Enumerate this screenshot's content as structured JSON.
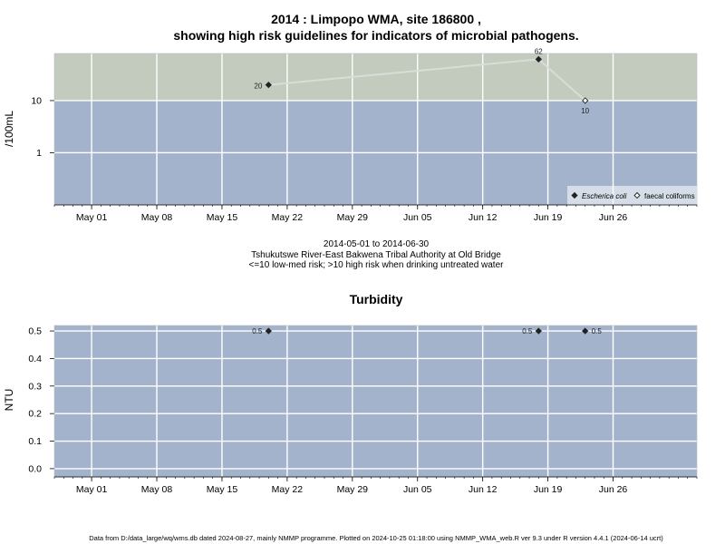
{
  "header": {
    "title_line1": "2014 : Limpopo WMA, site 186800 ,",
    "title_line2": "showing high risk guidelines for indicators of microbial pathogens."
  },
  "caption": {
    "line1": "2014-05-01 to 2014-06-30",
    "line2": "Tshukutswe River-East Bakwena Tribal Authority at Old Bridge",
    "line3": "<=10 low-med risk; >10 high risk when drinking untreated water"
  },
  "footer": {
    "text": "Data from D:/data_large/wq/wms.db dated 2024-08-27, mainly NMMP programme. Plotted on 2024-10-25 01:18:00 using NMMP_WMA_web.R ver 9.3 under R version 4.4.1 (2024-06-14 ucrt)"
  },
  "colors": {
    "low_risk_band": "#a3b3cc",
    "high_risk_band": "#c3cbbf",
    "grid": "#ffffff",
    "series_line": "#d8ddd8"
  },
  "chart_data": [
    {
      "type": "scatter",
      "title": "",
      "ylabel": "/100mL",
      "xlabel": "",
      "x_range": [
        "2014-04-27",
        "2014-07-05"
      ],
      "yscale": "log",
      "ylim": [
        0.1,
        80
      ],
      "x_ticks": [
        "May 01",
        "May 08",
        "May 15",
        "May 22",
        "May 29",
        "Jun 05",
        "Jun 12",
        "Jun 19",
        "Jun 26"
      ],
      "x_tick_dates": [
        "2014-05-01",
        "2014-05-08",
        "2014-05-15",
        "2014-05-22",
        "2014-05-29",
        "2014-06-05",
        "2014-06-12",
        "2014-06-19",
        "2014-06-26"
      ],
      "y_ticks": [
        1,
        10
      ],
      "y_tick_labels": [
        "1",
        "10"
      ],
      "threshold": 10,
      "grid": true,
      "legend_position": "bottom-right",
      "series": [
        {
          "name": "Escherica coli",
          "marker": "filled-diamond",
          "points": [
            {
              "date": "2014-05-20",
              "value": 20,
              "label": "20"
            },
            {
              "date": "2014-06-18",
              "value": 62,
              "label": "62"
            }
          ]
        },
        {
          "name": "faecal coliforms",
          "marker": "open-diamond",
          "points": [
            {
              "date": "2014-06-23",
              "value": 10,
              "label": "10"
            }
          ]
        }
      ]
    },
    {
      "type": "scatter",
      "title": "Turbidity",
      "ylabel": "NTU",
      "xlabel": "",
      "x_range": [
        "2014-04-27",
        "2014-07-05"
      ],
      "ylim": [
        -0.03,
        0.52
      ],
      "x_ticks": [
        "May 01",
        "May 08",
        "May 15",
        "May 22",
        "May 29",
        "Jun 05",
        "Jun 12",
        "Jun 19",
        "Jun 26"
      ],
      "x_tick_dates": [
        "2014-05-01",
        "2014-05-08",
        "2014-05-15",
        "2014-05-22",
        "2014-05-29",
        "2014-06-05",
        "2014-06-12",
        "2014-06-19",
        "2014-06-26"
      ],
      "y_ticks": [
        0.0,
        0.1,
        0.2,
        0.3,
        0.4,
        0.5
      ],
      "y_tick_labels": [
        "0.0",
        "0.1",
        "0.2",
        "0.3",
        "0.4",
        "0.5"
      ],
      "grid": true,
      "series": [
        {
          "marker": "filled-diamond",
          "points": [
            {
              "date": "2014-05-20",
              "value": 0.5,
              "label": "0.5"
            },
            {
              "date": "2014-06-18",
              "value": 0.5,
              "label": "0.5"
            },
            {
              "date": "2014-06-23",
              "value": 0.5,
              "label": "0.5"
            }
          ]
        }
      ]
    }
  ]
}
